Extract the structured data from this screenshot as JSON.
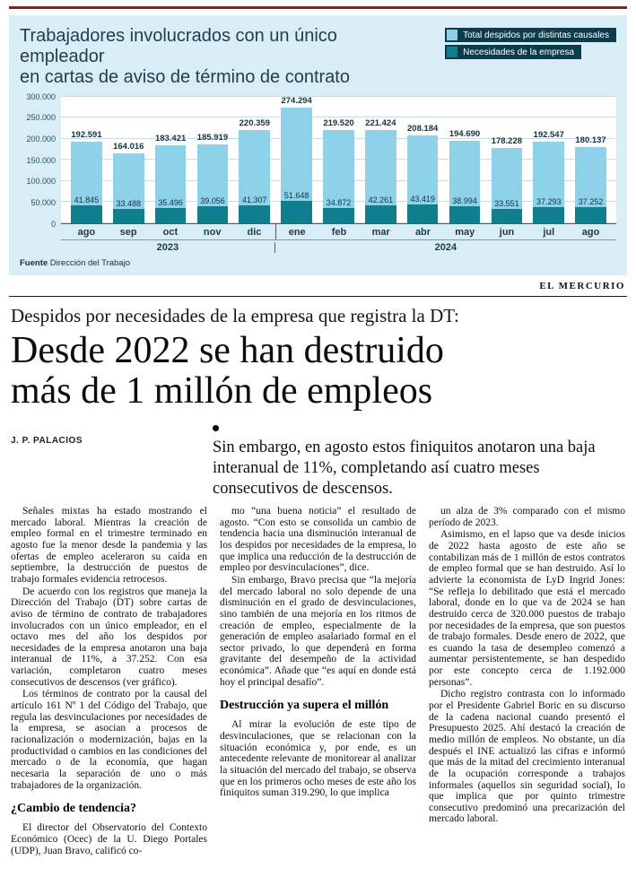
{
  "chart": {
    "title_line1": "Trabajadores involucrados con un único empleador",
    "title_line2": "en cartas de aviso de término de contrato",
    "legend": [
      {
        "label": "Total despidos por distintas causales",
        "color": "#8dd2e9"
      },
      {
        "label": "Necesidades de la empresa",
        "color": "#0f7f8f"
      }
    ],
    "source_label": "Fuente",
    "source": "Dirección del Trabajo",
    "brand": "EL MERCURIO"
  },
  "chart_data": {
    "type": "bar",
    "categories": [
      "ago",
      "sep",
      "oct",
      "nov",
      "dic",
      "ene",
      "feb",
      "mar",
      "abr",
      "may",
      "jun",
      "jul",
      "ago"
    ],
    "year_break": 5,
    "year_groups": [
      {
        "label": "2023",
        "span": 5
      },
      {
        "label": "2024",
        "span": 8
      }
    ],
    "series": [
      {
        "name": "Total despidos por distintas causales",
        "color": "#8dd2e9",
        "values": [
          192591,
          164016,
          183421,
          185919,
          220359,
          274294,
          219520,
          221424,
          208184,
          194690,
          178228,
          192547,
          180137
        ],
        "labels": [
          "192.591",
          "164.016",
          "183.421",
          "185.919",
          "220.359",
          "274.294",
          "219.520",
          "221.424",
          "208.184",
          "194.690",
          "178.228",
          "192.547",
          "180.137"
        ]
      },
      {
        "name": "Necesidades de la empresa",
        "color": "#0f7f8f",
        "values": [
          41845,
          33488,
          35496,
          39056,
          41307,
          51648,
          34872,
          42261,
          43419,
          38994,
          33551,
          37293,
          37252
        ],
        "labels": [
          "41.845",
          "33.488",
          "35.496",
          "39.056",
          "41.307",
          "51.648",
          "34.872",
          "42.261",
          "43.419",
          "38.994",
          "33.551",
          "37.293",
          "37.252"
        ]
      }
    ],
    "ylim": [
      0,
      300000
    ],
    "yticks": [
      "300.000",
      "250.000",
      "200.000",
      "150.000",
      "100.000",
      "50.000",
      "0"
    ],
    "grid": true,
    "legend_position": "top-right"
  },
  "article": {
    "kicker": "Despidos por necesidades de la empresa que registra la DT:",
    "headline_line1": "Desde 2022 se han destruido",
    "headline_line2": "más de 1 millón de empleos",
    "byline": "J. P. PALACIOS",
    "lede": "Sin embargo, en agosto estos finiquitos anotaron una baja interanual de 11%, completando así cuatro meses consecutivos de descensos.",
    "columns": [
      [
        {
          "type": "p",
          "text": "Señales mixtas ha estado mostrando el mercado laboral. Mientras la creación de empleo formal en el trimestre terminado en agosto fue la menor desde la pandemia y las ofertas de empleo aceleraron su caída en septiembre, la destrucción de puestos de trabajo formales evidencia retrocesos."
        },
        {
          "type": "p",
          "text": "De acuerdo con los registros que maneja la Dirección del Trabajo (DT) sobre cartas de aviso de término de contrato de trabajadores involucrados con un único empleador, en el octavo mes del año los despidos por necesidades de la empresa anotaron una baja interanual de 11%, a 37.252. Con esa variación, completaron cuatro meses consecutivos de descensos (ver gráfico)."
        },
        {
          "type": "p",
          "text": "Los términos de contrato por la causal del artículo 161 Nº 1 del Código del Trabajo, que regula las desvinculaciones por necesidades de la empresa, se asocian a procesos de racionalización o modernización, bajas en la productividad o cambios en las condiciones del mercado o de la economía, que hagan necesaria la separación de uno o más trabajadores de la organización."
        },
        {
          "type": "subhead",
          "text": "¿Cambio de tendencia?"
        },
        {
          "type": "p",
          "text": "El director del Observatorio del Contexto Económico (Ocec) de la U. Diego Portales (UDP), Juan Bravo, calificó co-"
        }
      ],
      [
        {
          "type": "p",
          "text": "mo “una buena noticia” el resultado de agosto. “Con esto se consolida un cambio de tendencia hacia una disminución interanual de los despidos por necesidades de la empresa, lo que implica una reducción de la destrucción de empleo por desvinculaciones”, dice."
        },
        {
          "type": "p",
          "text": "Sin embargo, Bravo precisa que “la mejoría del mercado laboral no solo depende de una disminución en el grado de desvinculaciones, sino también de una mejoría en los ritmos de creación de empleo, especialmente de la generación de empleo asalariado formal en el sector privado, lo que dependerá en forma gravitante del desempeño de la actividad económica”. Añade que “es aquí en donde está hoy el principal desafío”."
        },
        {
          "type": "subhead",
          "text": "Destrucción ya supera el millón"
        },
        {
          "type": "p",
          "text": "Al mirar la evolución de este tipo de desvinculaciones, que se relacionan con la situación económica y, por ende, es un antecedente relevante de monitorear al analizar la situación del mercado del trabajo, se observa que en los primeros ocho meses de este año los finiquitos suman 319.290, lo que implica"
        }
      ],
      [
        {
          "type": "p",
          "text": "un alza de 3% comparado con el mismo período de 2023."
        },
        {
          "type": "p",
          "text": "Asimismo, en el lapso que va desde inicios de 2022 hasta agosto de este año se contabilizan más de 1 millón de estos contratos de empleo formal que se han destruido. Así lo advierte la economista de LyD Ingrid Jones: “Se refleja lo debilitado que está el mercado laboral, donde en lo que va de 2024 se han destruido cerca de 320.000 puestos de trabajo por necesidades de la empresa, que son puestos de trabajo formales. Desde enero de 2022, que es cuando la tasa de desempleo comenzó a aumentar persistentemente, se han despedido por este concepto cerca de 1.192.000 personas”."
        },
        {
          "type": "p",
          "text": "Dicho registro contrasta con lo informado por el Presidente Gabriel Boric en su discurso de la cadena nacional cuando presentó el Presupuesto 2025. Ahí destacó la creación de medio millón de empleos. No obstante, un día después el INE actualizó las cifras e informó que más de la mitad del crecimiento interanual de la ocupación corresponde a trabajos informales (aquellos sin seguridad social), lo que implica que por quinto trimestre consecutivo predominó una precarización del mercado laboral."
        }
      ]
    ]
  }
}
